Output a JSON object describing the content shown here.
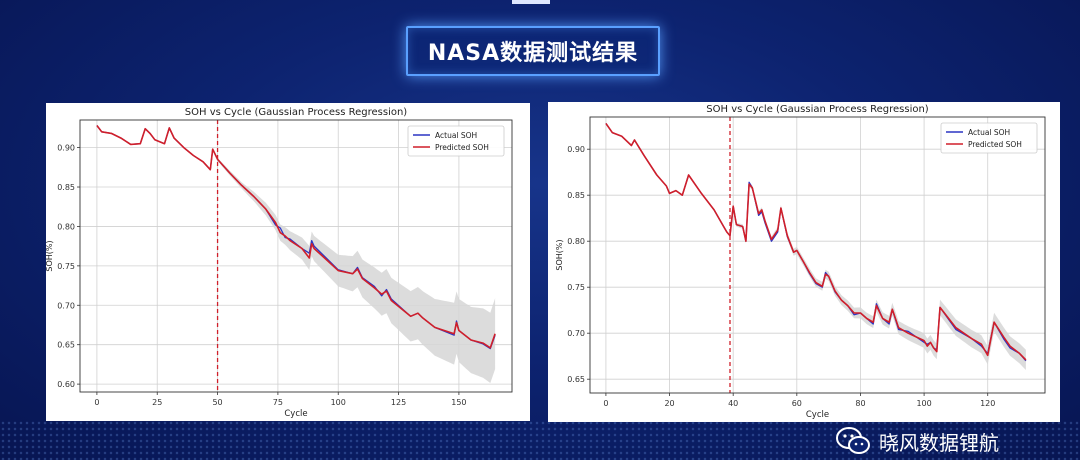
{
  "slide_title": "NASA数据测试结果",
  "watermark": "晓风数据锂航",
  "colors": {
    "actual": "#2b35c4",
    "predicted": "#d01f2a",
    "split": "#d01f2a",
    "band": "#d6d6d6"
  },
  "chart_data": [
    {
      "type": "line",
      "title": "SOH vs Cycle (Gaussian Process Regression)",
      "xlabel": "Cycle",
      "ylabel": "SOH(%)",
      "xlim": [
        -7,
        172
      ],
      "ylim": [
        0.59,
        0.935
      ],
      "xticks": [
        0,
        25,
        50,
        75,
        100,
        125,
        150
      ],
      "yticks": [
        0.6,
        0.65,
        0.7,
        0.75,
        0.8,
        0.85,
        0.9
      ],
      "ytick_labels": [
        "0.60",
        "0.65",
        "0.70",
        "0.75",
        "0.80",
        "0.85",
        "0.90"
      ],
      "grid": true,
      "legend_position": "top-right",
      "split_x": 50,
      "series": [
        {
          "name": "Actual SOH",
          "x": [
            0,
            2,
            6,
            10,
            14,
            18,
            20,
            22,
            24,
            28,
            30,
            32,
            36,
            40,
            44,
            47,
            48,
            50,
            55,
            60,
            65,
            70,
            74,
            76,
            78,
            80,
            85,
            88,
            89,
            90,
            95,
            100,
            106,
            108,
            110,
            115,
            118,
            120,
            122,
            130,
            133,
            135,
            140,
            148,
            149,
            150,
            155,
            160,
            163,
            165
          ],
          "y": [
            0.928,
            0.92,
            0.918,
            0.912,
            0.904,
            0.905,
            0.924,
            0.918,
            0.91,
            0.905,
            0.925,
            0.912,
            0.9,
            0.89,
            0.882,
            0.872,
            0.898,
            0.885,
            0.868,
            0.852,
            0.838,
            0.822,
            0.802,
            0.798,
            0.786,
            0.784,
            0.772,
            0.766,
            0.782,
            0.775,
            0.76,
            0.745,
            0.74,
            0.748,
            0.735,
            0.724,
            0.712,
            0.72,
            0.708,
            0.686,
            0.69,
            0.684,
            0.672,
            0.662,
            0.68,
            0.668,
            0.656,
            0.651,
            0.645,
            0.662
          ]
        },
        {
          "name": "Predicted SOH",
          "x": [
            0,
            2,
            6,
            10,
            14,
            18,
            20,
            22,
            24,
            28,
            30,
            32,
            36,
            40,
            44,
            47,
            48,
            50,
            55,
            60,
            65,
            70,
            74,
            76,
            78,
            80,
            85,
            88,
            89,
            90,
            95,
            100,
            106,
            108,
            110,
            115,
            118,
            120,
            122,
            130,
            133,
            135,
            140,
            148,
            149,
            150,
            155,
            160,
            163,
            165
          ],
          "y": [
            0.928,
            0.92,
            0.918,
            0.912,
            0.904,
            0.905,
            0.924,
            0.918,
            0.91,
            0.905,
            0.925,
            0.912,
            0.9,
            0.89,
            0.882,
            0.872,
            0.898,
            0.885,
            0.868,
            0.852,
            0.838,
            0.822,
            0.805,
            0.792,
            0.788,
            0.782,
            0.772,
            0.76,
            0.778,
            0.772,
            0.758,
            0.744,
            0.74,
            0.746,
            0.734,
            0.722,
            0.714,
            0.718,
            0.706,
            0.686,
            0.69,
            0.684,
            0.672,
            0.664,
            0.678,
            0.668,
            0.656,
            0.652,
            0.646,
            0.664
          ]
        }
      ],
      "confidence_band": {
        "x": [
          50,
          60,
          70,
          80,
          90,
          100,
          110,
          120,
          130,
          140,
          150,
          160,
          165
        ],
        "half_width": [
          0.002,
          0.004,
          0.008,
          0.012,
          0.016,
          0.02,
          0.024,
          0.028,
          0.032,
          0.036,
          0.04,
          0.044,
          0.045
        ]
      }
    },
    {
      "type": "line",
      "title": "SOH vs Cycle (Gaussian Process Regression)",
      "xlabel": "Cycle",
      "ylabel": "SOH(%)",
      "xlim": [
        -5,
        138
      ],
      "ylim": [
        0.635,
        0.935
      ],
      "xticks": [
        0,
        20,
        40,
        60,
        80,
        100,
        120
      ],
      "yticks": [
        0.65,
        0.7,
        0.75,
        0.8,
        0.85,
        0.9
      ],
      "ytick_labels": [
        "0.65",
        "0.70",
        "0.75",
        "0.80",
        "0.85",
        "0.90"
      ],
      "grid": true,
      "legend_position": "top-right",
      "split_x": 39,
      "series": [
        {
          "name": "Actual SOH",
          "x": [
            0,
            2,
            5,
            8,
            9,
            12,
            16,
            19,
            20,
            22,
            24,
            26,
            30,
            34,
            37,
            38,
            39,
            40,
            41,
            43,
            44,
            45,
            46,
            48,
            49,
            50,
            52,
            54,
            55,
            57,
            59,
            60,
            62,
            64,
            66,
            68,
            69,
            70,
            72,
            74,
            76,
            78,
            80,
            82,
            84,
            85,
            87,
            89,
            90,
            92,
            95,
            100,
            101,
            102,
            103,
            104,
            105,
            110,
            115,
            118,
            119,
            120,
            122,
            125,
            127,
            130,
            132
          ],
          "y": [
            0.928,
            0.918,
            0.914,
            0.904,
            0.91,
            0.893,
            0.872,
            0.86,
            0.852,
            0.855,
            0.85,
            0.872,
            0.852,
            0.834,
            0.816,
            0.81,
            0.806,
            0.838,
            0.818,
            0.816,
            0.8,
            0.864,
            0.858,
            0.828,
            0.832,
            0.82,
            0.8,
            0.81,
            0.836,
            0.805,
            0.788,
            0.79,
            0.778,
            0.765,
            0.754,
            0.75,
            0.766,
            0.762,
            0.745,
            0.736,
            0.73,
            0.72,
            0.722,
            0.716,
            0.71,
            0.732,
            0.716,
            0.71,
            0.726,
            0.704,
            0.702,
            0.69,
            0.688,
            0.69,
            0.684,
            0.682,
            0.728,
            0.704,
            0.694,
            0.686,
            0.682,
            0.678,
            0.712,
            0.694,
            0.684,
            0.678,
            0.67
          ]
        },
        {
          "name": "Predicted SOH",
          "x": [
            0,
            2,
            5,
            8,
            9,
            12,
            16,
            19,
            20,
            22,
            24,
            26,
            30,
            34,
            37,
            38,
            39,
            40,
            41,
            43,
            44,
            45,
            46,
            48,
            49,
            50,
            52,
            54,
            55,
            57,
            59,
            60,
            62,
            64,
            66,
            68,
            69,
            70,
            72,
            74,
            76,
            78,
            80,
            82,
            84,
            85,
            87,
            89,
            90,
            92,
            95,
            100,
            101,
            102,
            103,
            104,
            105,
            110,
            115,
            118,
            119,
            120,
            122,
            125,
            127,
            130,
            132
          ],
          "y": [
            0.928,
            0.918,
            0.914,
            0.904,
            0.91,
            0.893,
            0.872,
            0.86,
            0.852,
            0.855,
            0.85,
            0.872,
            0.852,
            0.834,
            0.816,
            0.81,
            0.806,
            0.838,
            0.818,
            0.816,
            0.8,
            0.862,
            0.858,
            0.83,
            0.834,
            0.822,
            0.802,
            0.812,
            0.836,
            0.806,
            0.788,
            0.79,
            0.778,
            0.766,
            0.755,
            0.751,
            0.764,
            0.762,
            0.746,
            0.736,
            0.73,
            0.722,
            0.722,
            0.716,
            0.712,
            0.73,
            0.716,
            0.712,
            0.726,
            0.706,
            0.7,
            0.692,
            0.686,
            0.69,
            0.684,
            0.68,
            0.728,
            0.706,
            0.694,
            0.688,
            0.682,
            0.676,
            0.712,
            0.696,
            0.686,
            0.678,
            0.671
          ]
        }
      ],
      "confidence_band": {
        "x": [
          39,
          50,
          60,
          70,
          80,
          90,
          100,
          110,
          120,
          132
        ],
        "half_width": [
          0.002,
          0.003,
          0.004,
          0.005,
          0.006,
          0.007,
          0.008,
          0.009,
          0.01,
          0.011
        ]
      }
    }
  ]
}
